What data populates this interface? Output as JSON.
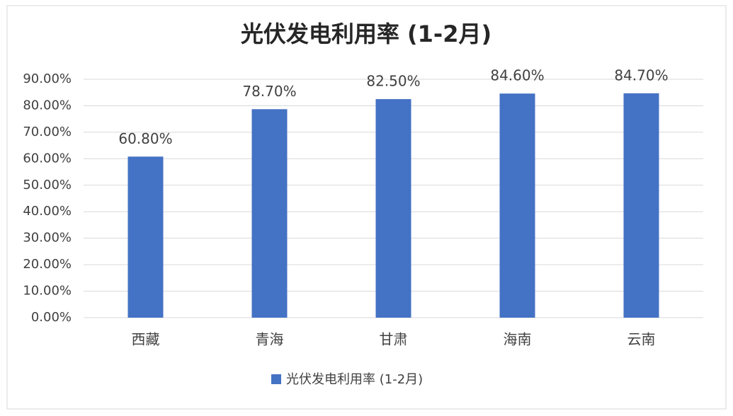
{
  "chart_data": {
    "type": "bar",
    "title": "光伏发电利用率 (1-2月)",
    "categories": [
      "西藏",
      "青海",
      "甘肃",
      "海南",
      "云南"
    ],
    "series": [
      {
        "name": "光伏发电利用率 (1-2月)",
        "color": "#4472c4",
        "values": [
          60.8,
          78.7,
          82.5,
          84.6,
          84.7
        ],
        "value_labels": [
          "60.80%",
          "78.70%",
          "82.50%",
          "84.60%",
          "84.70%"
        ]
      }
    ],
    "ylim": [
      0,
      90
    ],
    "yticks": [
      {
        "value": 0,
        "label": "0.00%"
      },
      {
        "value": 10,
        "label": "10.00%"
      },
      {
        "value": 20,
        "label": "20.00%"
      },
      {
        "value": 30,
        "label": "30.00%"
      },
      {
        "value": 40,
        "label": "40.00%"
      },
      {
        "value": 50,
        "label": "50.00%"
      },
      {
        "value": 60,
        "label": "60.00%"
      },
      {
        "value": 70,
        "label": "70.00%"
      },
      {
        "value": 80,
        "label": "80.00%"
      },
      {
        "value": 90,
        "label": "90.00%"
      }
    ],
    "grid": true,
    "legend": "bottom"
  }
}
